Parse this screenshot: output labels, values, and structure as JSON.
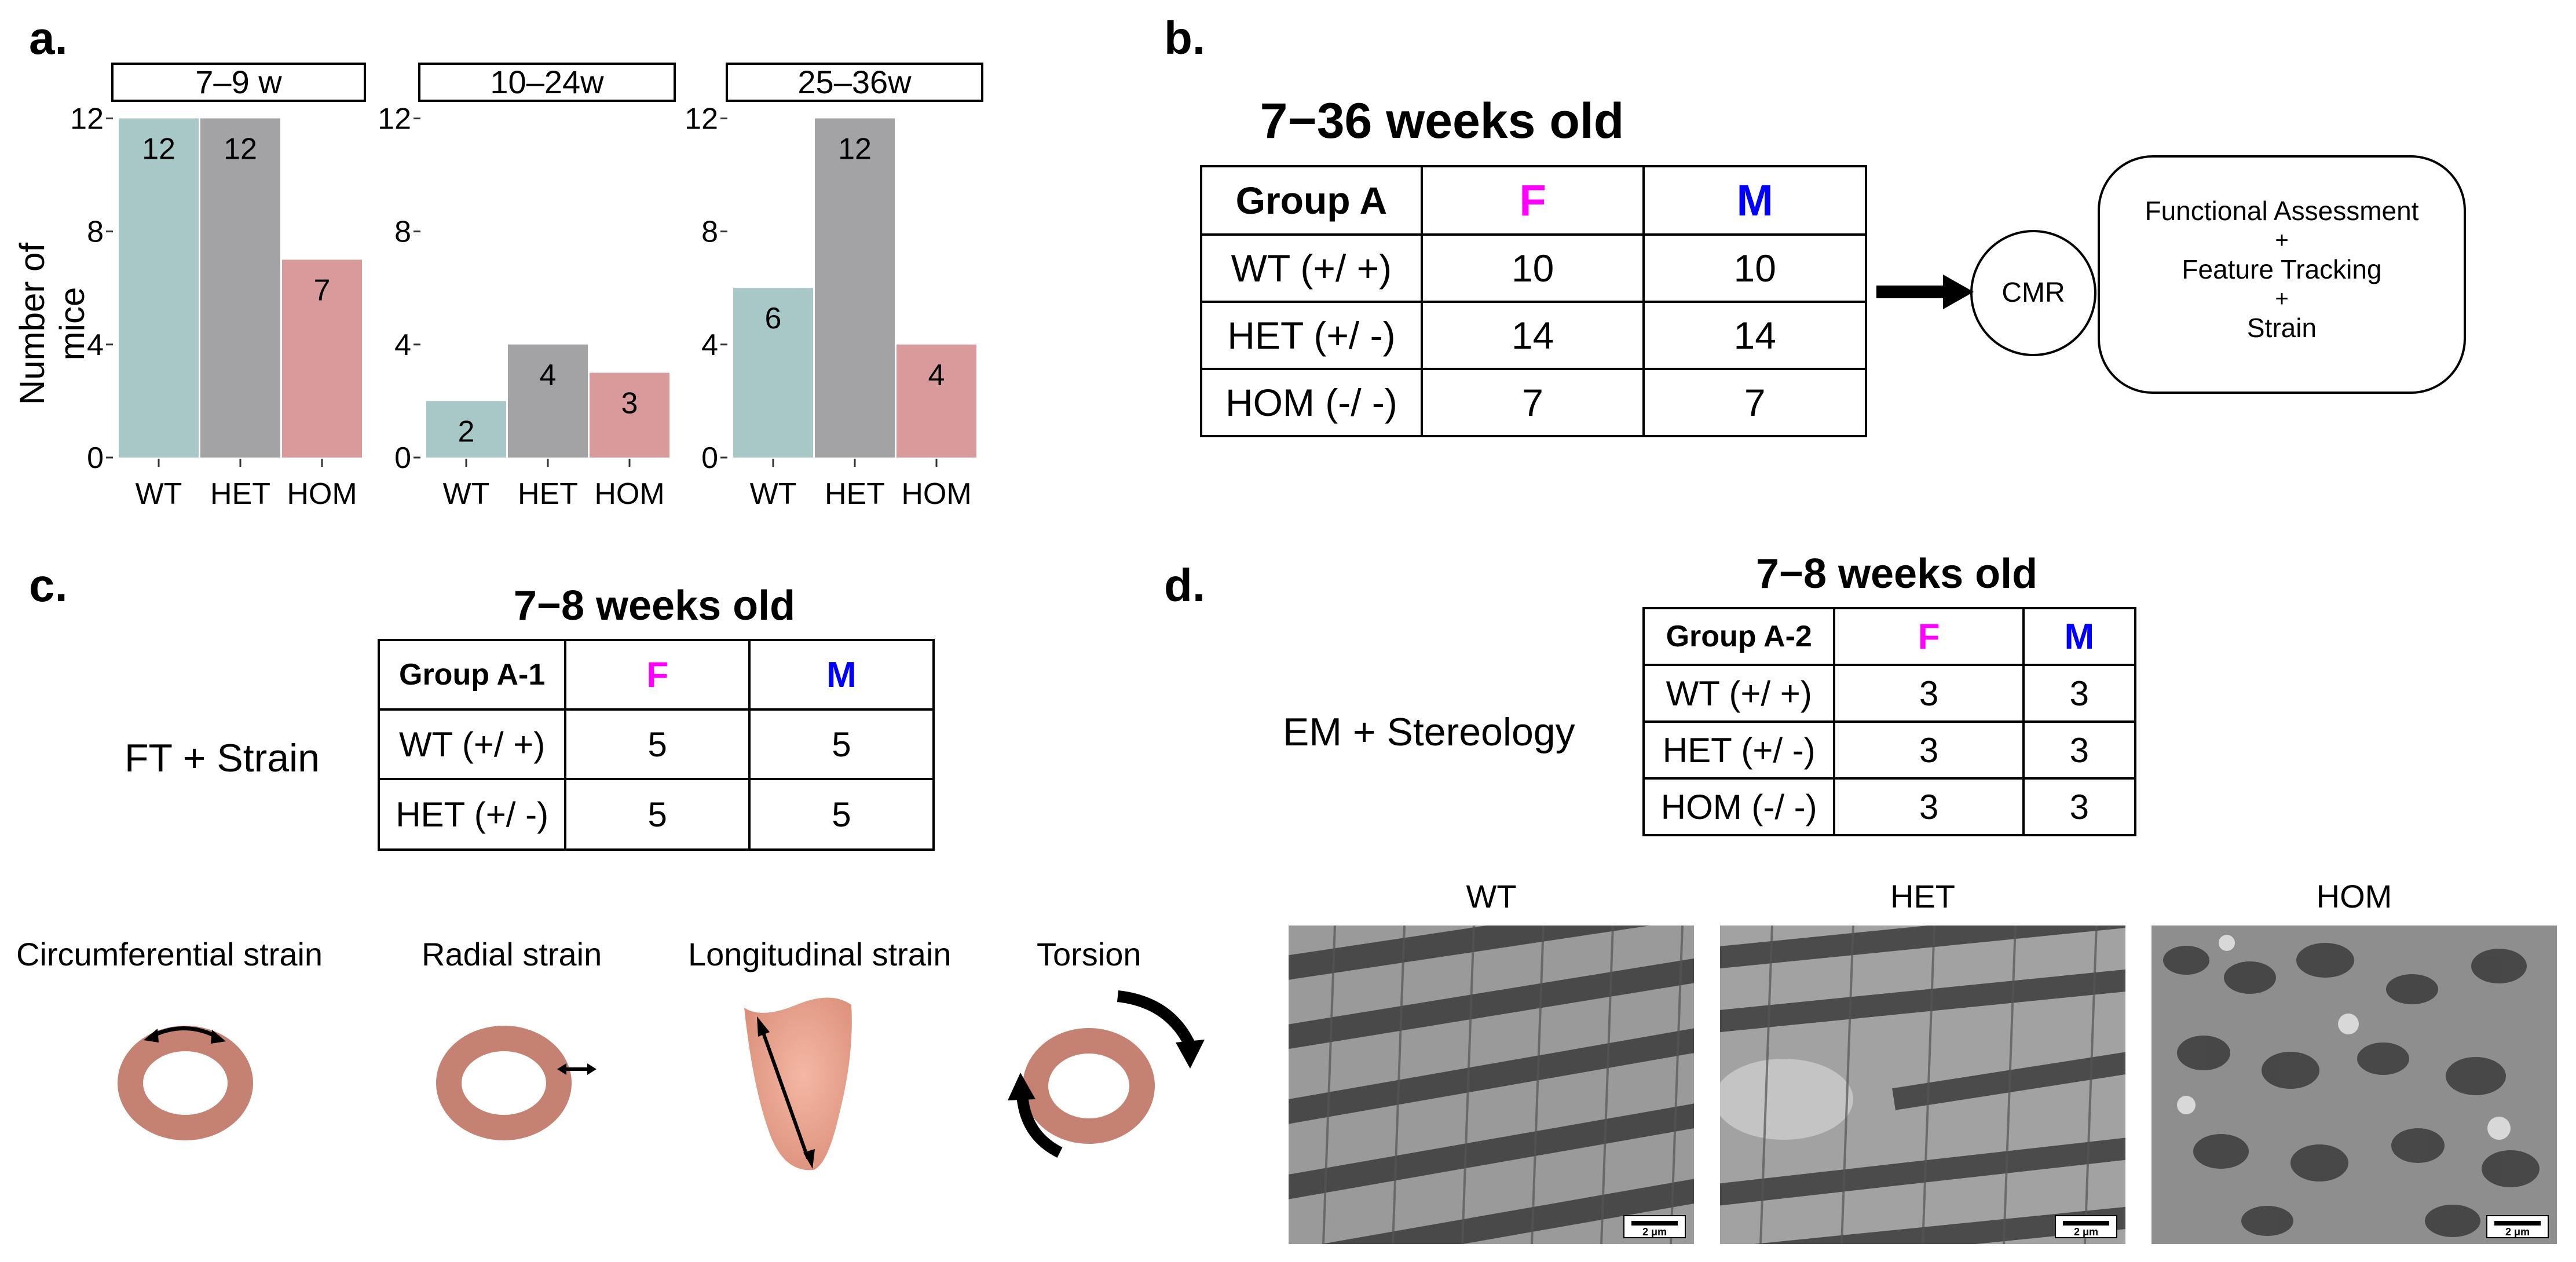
{
  "panel_a": {
    "label": "a.",
    "y_axis_label": "Number of mice",
    "facets": [
      {
        "strip": "7–9 w"
      },
      {
        "strip": "10–24w"
      },
      {
        "strip": "25–36w"
      }
    ],
    "colors": {
      "WT": "#a8c8c8",
      "HET": "#a3a3a6",
      "HOM": "#d89a9a"
    }
  },
  "chart_data": {
    "type": "bar",
    "facets": [
      "7–9 w",
      "10–24w",
      "25–36w"
    ],
    "categories": [
      "WT",
      "HET",
      "HOM"
    ],
    "series": [
      {
        "name": "7–9 w",
        "values": [
          12,
          12,
          7
        ]
      },
      {
        "name": "10–24w",
        "values": [
          2,
          4,
          3
        ]
      },
      {
        "name": "25–36w",
        "values": [
          6,
          12,
          4
        ]
      }
    ],
    "yticks": [
      0,
      4,
      8,
      12
    ],
    "ylim": [
      0,
      12.5
    ],
    "ylabel": "Number of mice",
    "xlabel": ""
  },
  "panel_b": {
    "label": "b.",
    "title": "7−36 weeks old",
    "header": [
      "Group A",
      "F",
      "M"
    ],
    "rows": [
      [
        "WT  (+/ +)",
        "10",
        "10"
      ],
      [
        "HET (+/ -)",
        "14",
        "14"
      ],
      [
        "HOM (-/ -)",
        "7",
        "7"
      ]
    ],
    "cmr": "CMR",
    "box_lines": [
      "Functional Assessment",
      "+",
      "Feature Tracking",
      "+",
      "Strain"
    ]
  },
  "panel_c": {
    "label": "c.",
    "title": "7−8 weeks old",
    "side_label": "FT + Strain",
    "header": [
      "Group A-1",
      "F",
      "M"
    ],
    "rows": [
      [
        "WT  (+/ +)",
        "5",
        "5"
      ],
      [
        "HET (+/ -)",
        "5",
        "5"
      ]
    ],
    "strain_labels": [
      "Circumferential strain",
      "Radial strain",
      "Longitudinal strain",
      "Torsion"
    ]
  },
  "panel_d": {
    "label": "d.",
    "title": "7−8 weeks old",
    "side_label": "EM + Stereology",
    "header": [
      "Group A-2",
      "F",
      "M"
    ],
    "rows": [
      [
        "WT  (+/ +)",
        "3",
        "3"
      ],
      [
        "HET (+/ -)",
        "3",
        "3"
      ],
      [
        "HOM (-/ -)",
        "3",
        "3"
      ]
    ],
    "image_titles": [
      "WT",
      "HET",
      "HOM"
    ],
    "scale_bar": "2 μm"
  }
}
